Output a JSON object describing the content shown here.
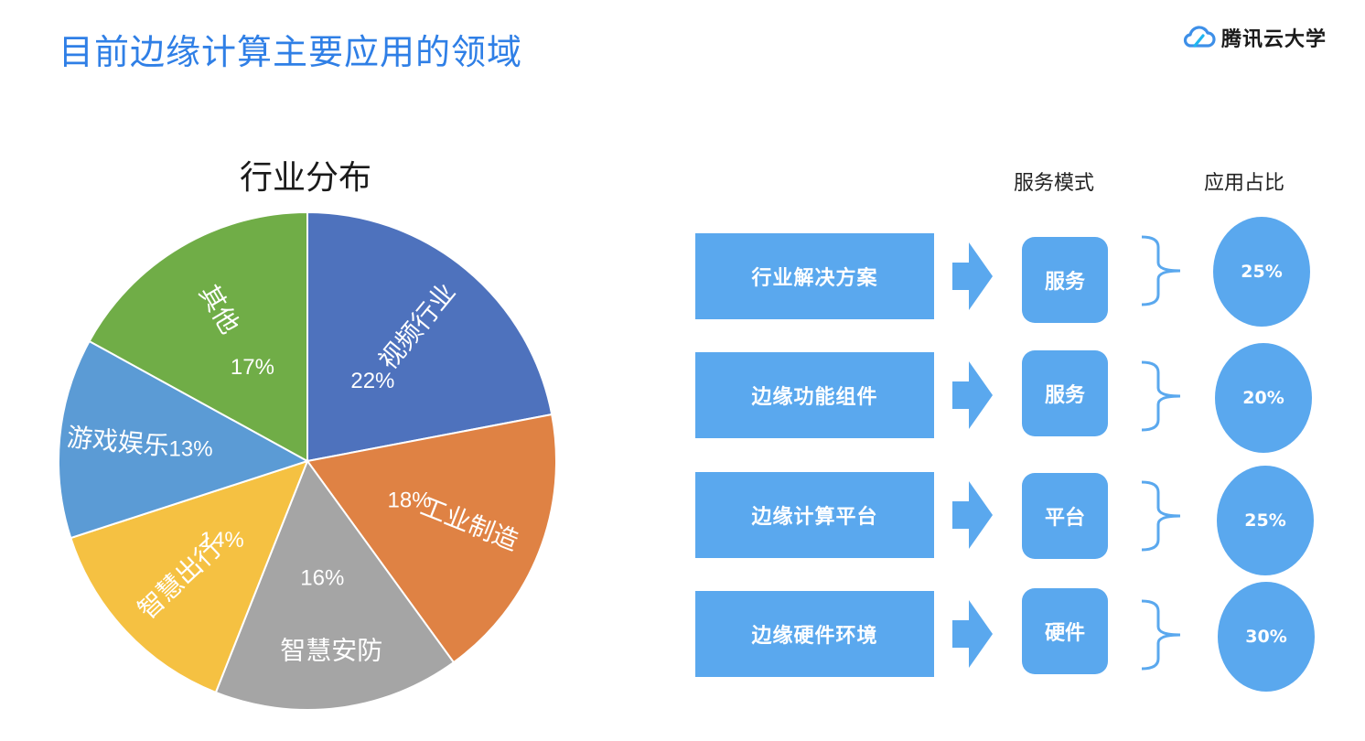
{
  "header": {
    "title": "目前边缘计算主要应用的领域",
    "brand": "腾讯云大学"
  },
  "chart_data": {
    "type": "pie",
    "title": "行业分布",
    "slices": [
      {
        "label": "视频行业",
        "value": 22,
        "value_label": "22%",
        "color": "#4e72bd"
      },
      {
        "label": "工业制造",
        "value": 18,
        "value_label": "18%",
        "color": "#df8244"
      },
      {
        "label": "智慧安防",
        "value": 16,
        "value_label": "16%",
        "color": "#a5a5a5"
      },
      {
        "label": "智慧出行",
        "value": 14,
        "value_label": "14%",
        "color": "#f5c142"
      },
      {
        "label": "游戏娱乐",
        "value": 13,
        "value_label": "13%",
        "color": "#5b9bd5"
      },
      {
        "label": "其他",
        "value": 17,
        "value_label": "17%",
        "color": "#70ad47"
      }
    ],
    "start": "12 o'clock",
    "direction": "clockwise"
  },
  "table": {
    "headers": {
      "mode": "服务模式",
      "share": "应用占比"
    },
    "rows": [
      {
        "solution": "行业解决方案",
        "mode": "服务",
        "share": "25%"
      },
      {
        "solution": "边缘功能组件",
        "mode": "服务",
        "share": "20%"
      },
      {
        "solution": "边缘计算平台",
        "mode": "平台",
        "share": "25%"
      },
      {
        "solution": "边缘硬件环境",
        "mode": "硬件",
        "share": "30%"
      }
    ]
  },
  "colors": {
    "accent": "#2f7fe6",
    "box": "#5aa8ee",
    "brace": "#5aa8ee"
  },
  "icons": {
    "brand": "cloud-icon",
    "row_arrow": "right-arrow-icon",
    "row_brace": "right-brace-icon"
  }
}
